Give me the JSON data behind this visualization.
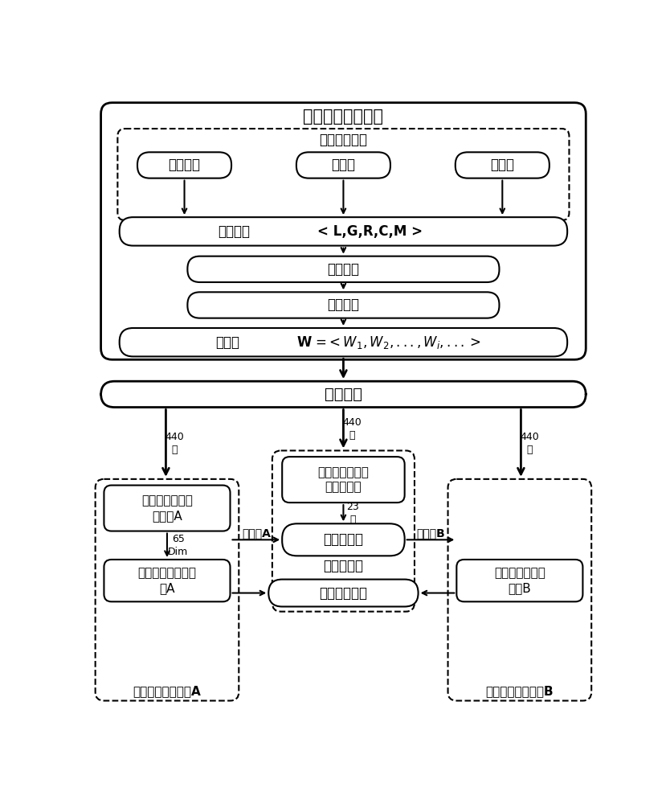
{
  "title": "数据测量及预处理",
  "sensor_title": "传感器测量值",
  "sensor_boxes": [
    "加速度计",
    "陀螺仪",
    "磁力计"
  ],
  "data_seq_label": "数据序列",
  "data_seq_formula": "< L,G,R,C,M >",
  "noise_filter": "噪声滤除",
  "window_seg": "窗口划分",
  "window_set_label": "窗口集",
  "window_set_formula": "W =< W₁,W₂,...,Wᵢ,...>",
  "feature_extract": "特征提取",
  "feat_sel_center": "特征选择：针对\n姿态组识别",
  "posture_classifier": "姿态分类器",
  "gesture_group_id": "姿态组识别",
  "feat_sel_A": "特征选择：针对\n姿态组A",
  "corner_cls_A": "转角分类器：姿态\n组A",
  "corner_res": "转角识别结果",
  "corner_cls_B": "转角分类器：姿\n态组B",
  "group_A_label": "姿态组A",
  "group_B_label": "姿态组B",
  "label_A_bottom": "转角识别：姿态组A",
  "label_B_bottom": "转角识别：姿态组B",
  "arrow_440": "440\n维",
  "arrow_23": "23\n维",
  "arrow_65": "65\nDim",
  "bg_color": "#ffffff",
  "box_color": "#000000",
  "text_color": "#000000"
}
